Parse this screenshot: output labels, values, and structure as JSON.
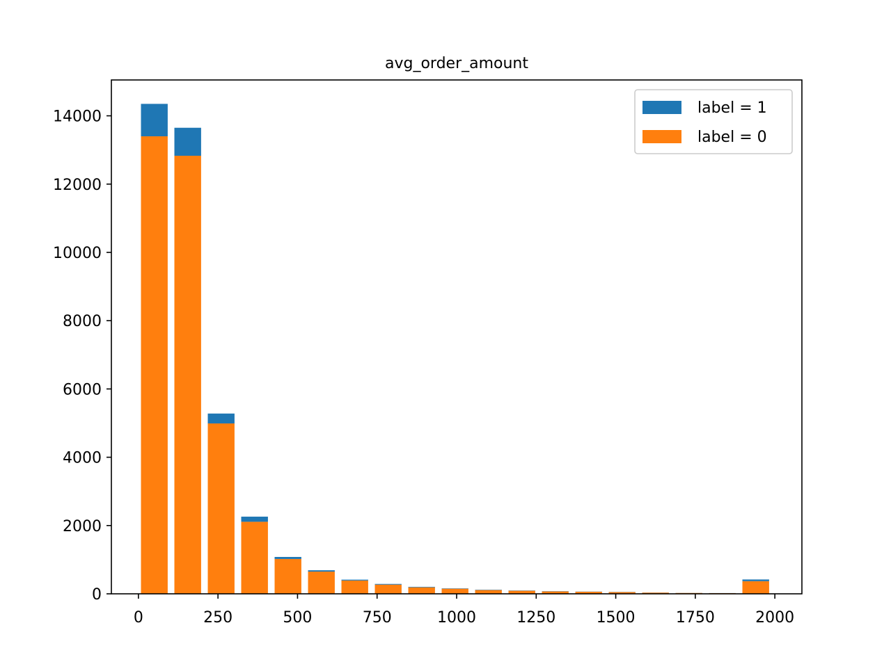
{
  "chart_data": {
    "type": "bar",
    "stacked": true,
    "title": "avg_order_amount",
    "xlabel": "",
    "ylabel": "",
    "xlim": [
      -85,
      2085
    ],
    "ylim": [
      0,
      15050
    ],
    "xticks": [
      0,
      250,
      500,
      750,
      1000,
      1250,
      1500,
      1750,
      2000
    ],
    "xtick_labels": [
      "0",
      "250",
      "500",
      "750",
      "1000",
      "1250",
      "1500",
      "1750",
      "2000"
    ],
    "yticks": [
      0,
      2000,
      4000,
      6000,
      8000,
      10000,
      12000,
      14000
    ],
    "ytick_labels": [
      "0",
      "2000",
      "4000",
      "6000",
      "8000",
      "10000",
      "12000",
      "14000"
    ],
    "x": [
      50,
      155,
      260,
      365,
      470,
      575,
      680,
      785,
      890,
      995,
      1100,
      1205,
      1310,
      1415,
      1520,
      1625,
      1730,
      1835,
      1940
    ],
    "bar_width": 84,
    "series": [
      {
        "name": "label = 0",
        "color": "#ff7f0e",
        "values": [
          13400,
          12830,
          4990,
          2110,
          1020,
          650,
          390,
          270,
          190,
          150,
          110,
          90,
          70,
          60,
          50,
          35,
          25,
          20,
          370
        ]
      },
      {
        "name": "label = 1",
        "color": "#1f77b4",
        "values": [
          950,
          820,
          290,
          150,
          60,
          40,
          25,
          20,
          15,
          10,
          10,
          8,
          7,
          5,
          5,
          3,
          2,
          2,
          50
        ]
      }
    ],
    "legend": {
      "position": "top-right",
      "entries": [
        {
          "label": "label = 1",
          "color": "#1f77b4"
        },
        {
          "label": "label = 0",
          "color": "#ff7f0e"
        }
      ]
    },
    "grid": false
  }
}
